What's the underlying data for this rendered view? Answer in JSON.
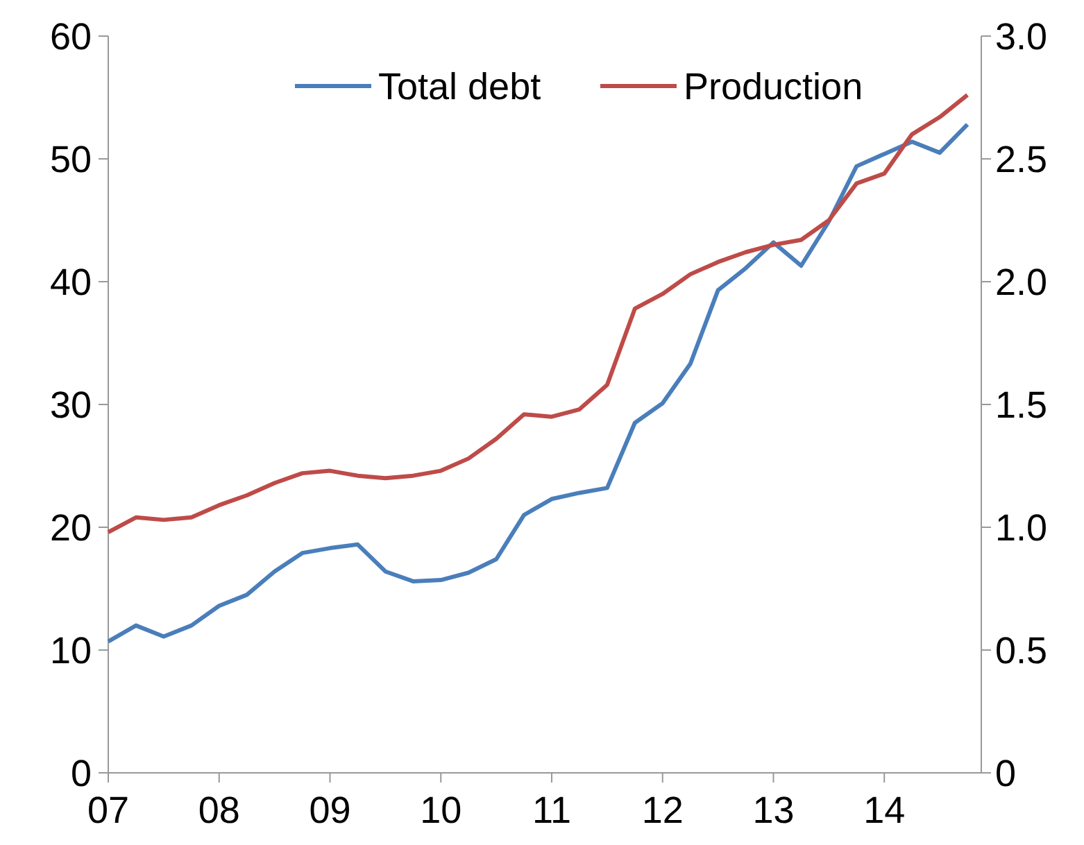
{
  "chart_data": {
    "type": "line",
    "x": [
      2007,
      2007.25,
      2007.5,
      2007.75,
      2008,
      2008.25,
      2008.5,
      2008.75,
      2009,
      2009.25,
      2009.5,
      2009.75,
      2010,
      2010.25,
      2010.5,
      2010.75,
      2011,
      2011.25,
      2011.5,
      2011.75,
      2012,
      2012.25,
      2012.5,
      2012.75,
      2013,
      2013.25,
      2013.5,
      2013.75,
      2014,
      2014.25,
      2014.5,
      2014.75
    ],
    "series": [
      {
        "name": "Total debt",
        "color": "#4a7ebb",
        "values": [
          10.7,
          12.0,
          11.1,
          12.0,
          13.6,
          14.5,
          16.4,
          17.9,
          18.3,
          18.6,
          16.4,
          15.6,
          15.7,
          16.3,
          17.4,
          21.0,
          22.3,
          22.8,
          23.2,
          28.5,
          30.1,
          33.3,
          39.3,
          41.1,
          43.2,
          41.3,
          44.9,
          49.4,
          50.4,
          51.4,
          50.5,
          52.8
        ]
      },
      {
        "name": "Production",
        "color": "#be4b48",
        "axis": "y2",
        "values": [
          0.98,
          1.04,
          1.03,
          1.04,
          1.09,
          1.13,
          1.18,
          1.22,
          1.23,
          1.21,
          1.2,
          1.21,
          1.23,
          1.28,
          1.36,
          1.46,
          1.45,
          1.48,
          1.58,
          1.89,
          1.95,
          2.03,
          2.08,
          2.12,
          2.15,
          2.17,
          2.25,
          2.4,
          2.44,
          2.6,
          2.67,
          2.76
        ]
      }
    ],
    "xlim": [
      2007,
      2014.875
    ],
    "xticks": [
      {
        "value": 2007,
        "label": "07"
      },
      {
        "value": 2008,
        "label": "08"
      },
      {
        "value": 2009,
        "label": "09"
      },
      {
        "value": 2010,
        "label": "10"
      },
      {
        "value": 2011,
        "label": "11"
      },
      {
        "value": 2012,
        "label": "12"
      },
      {
        "value": 2013,
        "label": "13"
      },
      {
        "value": 2014,
        "label": "14"
      }
    ],
    "ylim": [
      0,
      60
    ],
    "yticks": [
      0,
      10,
      20,
      30,
      40,
      50,
      60
    ],
    "y2lim": [
      0,
      3
    ],
    "y2ticks": [
      {
        "value": 0,
        "label": "0"
      },
      {
        "value": 0.5,
        "label": "0.5"
      },
      {
        "value": 1,
        "label": "1.0"
      },
      {
        "value": 1.5,
        "label": "1.5"
      },
      {
        "value": 2,
        "label": "2.0"
      },
      {
        "value": 2.5,
        "label": "2.5"
      },
      {
        "value": 3,
        "label": "3.0"
      }
    ],
    "grid": false,
    "legend": "top",
    "marker": "none",
    "line_style": "solid"
  }
}
